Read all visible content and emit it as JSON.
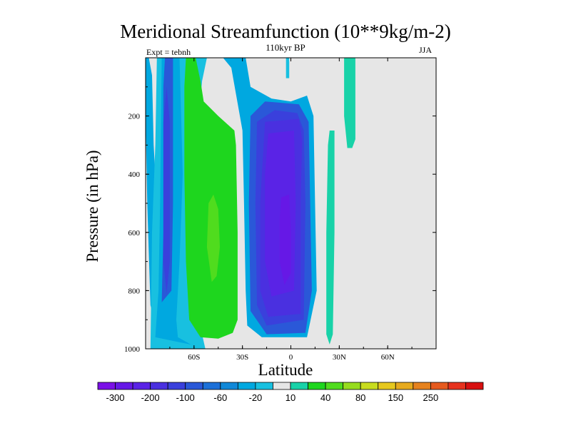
{
  "chart_data": {
    "type": "heatmap",
    "title": "Meridional Streamfunction (10**9kg/m-2)",
    "subtitle": "110kyr BP",
    "left_annotation": "Expt = tebnh",
    "right_annotation": "JJA",
    "xlabel": "Latitude",
    "ylabel": "Pressure (in hPa)",
    "xlim": [
      -90,
      90
    ],
    "ylim": [
      1000,
      0
    ],
    "x_ticks": [
      {
        "value": -60,
        "label": "60S"
      },
      {
        "value": -30,
        "label": "30S"
      },
      {
        "value": 0,
        "label": "0"
      },
      {
        "value": 30,
        "label": "30N"
      },
      {
        "value": 60,
        "label": "60N"
      }
    ],
    "y_ticks": [
      {
        "value": 200,
        "label": "200"
      },
      {
        "value": 400,
        "label": "400"
      },
      {
        "value": 600,
        "label": "600"
      },
      {
        "value": 800,
        "label": "800"
      },
      {
        "value": 1000,
        "label": "1000"
      }
    ],
    "colorbar": {
      "colors": [
        "#7a10e6",
        "#6618e6",
        "#5a23e6",
        "#4a30e0",
        "#3a40dc",
        "#2a58d8",
        "#1c70d8",
        "#1088d8",
        "#00a8e0",
        "#18c0e0",
        "#e6e6e6",
        "#18d2a8",
        "#1ed61e",
        "#50dc1e",
        "#96dc1e",
        "#c8dc1e",
        "#e6c81e",
        "#e6aa1e",
        "#e6821e",
        "#e65a1e",
        "#e6321e",
        "#d81010"
      ],
      "labels": [
        {
          "after_index": 0,
          "label": "-300"
        },
        {
          "after_index": 2,
          "label": "-200"
        },
        {
          "after_index": 4,
          "label": "-100"
        },
        {
          "after_index": 6,
          "label": "-60"
        },
        {
          "after_index": 8,
          "label": "-20"
        },
        {
          "after_index": 10,
          "label": "10"
        },
        {
          "after_index": 12,
          "label": "40"
        },
        {
          "after_index": 14,
          "label": "80"
        },
        {
          "after_index": 16,
          "label": "150"
        },
        {
          "after_index": 18,
          "label": "250"
        }
      ]
    },
    "background_color": "#e6e6e6",
    "regions": [
      {
        "name": "cyan-west-strip",
        "color": "#00a8e0",
        "points": [
          [
            -90,
            0
          ],
          [
            -88,
            0
          ],
          [
            -86,
            60
          ],
          [
            -85,
            300
          ],
          [
            -82,
            600
          ],
          [
            -80,
            900
          ],
          [
            -77,
            990
          ],
          [
            -81,
            1000
          ],
          [
            -87,
            850
          ],
          [
            -89,
            500
          ],
          [
            -90,
            200
          ]
        ]
      },
      {
        "name": "teal-southern-band",
        "color": "#18c0e0",
        "points": [
          [
            -87,
            1000
          ],
          [
            -86,
            600
          ],
          [
            -84,
            300
          ],
          [
            -83,
            0
          ],
          [
            -52,
            0
          ],
          [
            -55,
            80
          ],
          [
            -57,
            200
          ],
          [
            -57,
            700
          ],
          [
            -55,
            950
          ],
          [
            -53,
            1000
          ]
        ]
      },
      {
        "name": "cyan-southern-band",
        "color": "#00a8e0",
        "points": [
          [
            -84,
            960
          ],
          [
            -82,
            800
          ],
          [
            -81,
            500
          ],
          [
            -80,
            0
          ],
          [
            -69,
            0
          ],
          [
            -67,
            400
          ],
          [
            -69,
            700
          ],
          [
            -71,
            900
          ],
          [
            -70,
            960
          ],
          [
            -62,
            985
          ],
          [
            -58,
            990
          ]
        ]
      },
      {
        "name": "blue-southern-band",
        "color": "#2a58d8",
        "points": [
          [
            -80,
            840
          ],
          [
            -79,
            600
          ],
          [
            -79,
            100
          ],
          [
            -78,
            0
          ],
          [
            -73,
            0
          ],
          [
            -73,
            500
          ],
          [
            -74,
            800
          ]
        ]
      },
      {
        "name": "deep-blue-southern-core",
        "color": "#3a40dc",
        "points": [
          [
            -79,
            220
          ],
          [
            -77,
            100
          ],
          [
            -75,
            220
          ],
          [
            -75,
            700
          ],
          [
            -77,
            810
          ],
          [
            -79,
            700
          ]
        ]
      },
      {
        "name": "green-southern-cell",
        "color": "#1ed61e",
        "points": [
          [
            -65,
            0
          ],
          [
            -59,
            0
          ],
          [
            -56,
            80
          ],
          [
            -54,
            150
          ],
          [
            -45,
            200
          ],
          [
            -35,
            250
          ],
          [
            -34,
            300
          ],
          [
            -33,
            600
          ],
          [
            -33,
            900
          ],
          [
            -36,
            945
          ],
          [
            -45,
            965
          ],
          [
            -56,
            960
          ],
          [
            -63,
            900
          ],
          [
            -65,
            700
          ],
          [
            -66,
            400
          ],
          [
            -66,
            100
          ]
        ]
      },
      {
        "name": "lime-southern-core",
        "color": "#50dc1e",
        "points": [
          [
            -51,
            500
          ],
          [
            -48,
            470
          ],
          [
            -45,
            520
          ],
          [
            -44,
            650
          ],
          [
            -46,
            750
          ],
          [
            -49,
            770
          ],
          [
            -52,
            650
          ]
        ]
      },
      {
        "name": "cyan-top-northwest",
        "color": "#00a8e0",
        "points": [
          [
            -42,
            0
          ],
          [
            -28,
            0
          ],
          [
            -28,
            80
          ],
          [
            -33,
            60
          ],
          [
            -39,
            20
          ]
        ]
      },
      {
        "name": "cyan-tropical-outer",
        "color": "#00a8e0",
        "points": [
          [
            -28,
            0
          ],
          [
            -38,
            0
          ],
          [
            -30,
            250
          ],
          [
            -29,
            500
          ],
          [
            -28,
            800
          ],
          [
            -27,
            920
          ],
          [
            -18,
            960
          ],
          [
            10,
            960
          ],
          [
            16,
            800
          ],
          [
            15,
            500
          ],
          [
            14,
            200
          ],
          [
            10,
            130
          ],
          [
            0,
            150
          ],
          [
            -12,
            140
          ],
          [
            -25,
            100
          ]
        ]
      },
      {
        "name": "blue-tropical-ring",
        "color": "#2a58d8",
        "points": [
          [
            -25,
            200
          ],
          [
            -16,
            150
          ],
          [
            5,
            160
          ],
          [
            11,
            220
          ],
          [
            12,
            500
          ],
          [
            13,
            800
          ],
          [
            9,
            945
          ],
          [
            -15,
            950
          ],
          [
            -25,
            870
          ],
          [
            -26,
            500
          ]
        ]
      },
      {
        "name": "blue-violet-tropical-ring",
        "color": "#3a40dc",
        "points": [
          [
            -21,
            220
          ],
          [
            -10,
            180
          ],
          [
            4,
            190
          ],
          [
            8,
            250
          ],
          [
            9,
            500
          ],
          [
            8,
            900
          ],
          [
            -15,
            920
          ],
          [
            -21,
            850
          ],
          [
            -22,
            500
          ]
        ]
      },
      {
        "name": "indigo-tropical-ring",
        "color": "#4a30e0",
        "points": [
          [
            -16,
            220
          ],
          [
            5,
            210
          ],
          [
            7,
            280
          ],
          [
            6,
            500
          ],
          [
            6,
            880
          ],
          [
            -14,
            890
          ],
          [
            -19,
            800
          ],
          [
            -19,
            500
          ]
        ]
      },
      {
        "name": "purple-tropical-core",
        "color": "#5a23e6",
        "points": [
          [
            -14,
            260
          ],
          [
            2,
            250
          ],
          [
            3,
            500
          ],
          [
            2,
            800
          ],
          [
            -12,
            820
          ],
          [
            -16,
            700
          ],
          [
            -16,
            400
          ]
        ]
      },
      {
        "name": "violet-tropical-peak",
        "color": "#6618e6",
        "points": [
          [
            -6,
            480
          ],
          [
            -1,
            470
          ],
          [
            0,
            600
          ],
          [
            0,
            740
          ],
          [
            -4,
            780
          ],
          [
            -7,
            700
          ],
          [
            -7,
            560
          ]
        ]
      },
      {
        "name": "cyan-equatorial-plume",
        "color": "#18c0e0",
        "points": [
          [
            -3,
            0
          ],
          [
            -1,
            0
          ],
          [
            -1,
            70
          ],
          [
            -3,
            70
          ]
        ]
      },
      {
        "name": "teal-northern-thin",
        "color": "#18d2a8",
        "points": [
          [
            22,
            950
          ],
          [
            22,
            600
          ],
          [
            23,
            300
          ],
          [
            24,
            250
          ],
          [
            27,
            250
          ],
          [
            27,
            600
          ],
          [
            26,
            950
          ],
          [
            24,
            985
          ]
        ]
      },
      {
        "name": "teal-northern-upper",
        "color": "#18d2a8",
        "points": [
          [
            33,
            0
          ],
          [
            40,
            0
          ],
          [
            40,
            280
          ],
          [
            38,
            310
          ],
          [
            35,
            310
          ],
          [
            33,
            200
          ]
        ]
      }
    ]
  }
}
